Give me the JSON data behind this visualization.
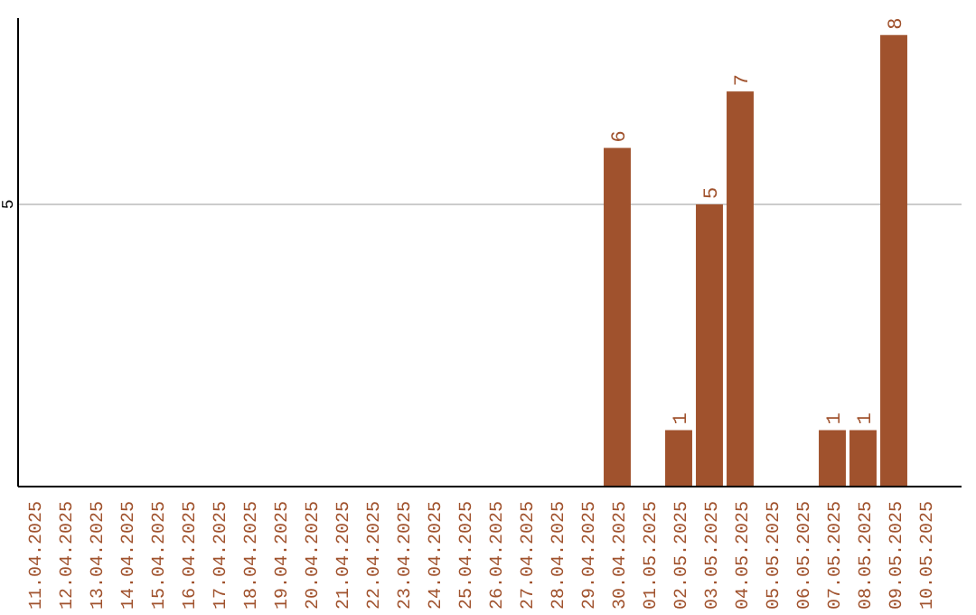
{
  "chart_data": {
    "type": "bar",
    "categories": [
      "11.04.2025",
      "12.04.2025",
      "13.04.2025",
      "14.04.2025",
      "15.04.2025",
      "16.04.2025",
      "17.04.2025",
      "18.04.2025",
      "19.04.2025",
      "20.04.2025",
      "21.04.2025",
      "22.04.2025",
      "23.04.2025",
      "24.04.2025",
      "25.04.2025",
      "26.04.2025",
      "27.04.2025",
      "28.04.2025",
      "29.04.2025",
      "30.04.2025",
      "01.05.2025",
      "02.05.2025",
      "03.05.2025",
      "04.05.2025",
      "05.05.2025",
      "06.05.2025",
      "07.05.2025",
      "08.05.2025",
      "09.05.2025",
      "10.05.2025"
    ],
    "values": [
      null,
      null,
      null,
      null,
      null,
      null,
      null,
      null,
      null,
      null,
      null,
      null,
      null,
      null,
      null,
      null,
      null,
      null,
      null,
      6,
      null,
      1,
      5,
      7,
      null,
      null,
      1,
      1,
      8,
      null
    ],
    "data_labels": true,
    "ylim": [
      0,
      8.3
    ],
    "color": "#a0522d",
    "ref_lines": [
      {
        "axis": "y",
        "value": 5,
        "label": "5",
        "color": "#cccccc"
      }
    ]
  }
}
